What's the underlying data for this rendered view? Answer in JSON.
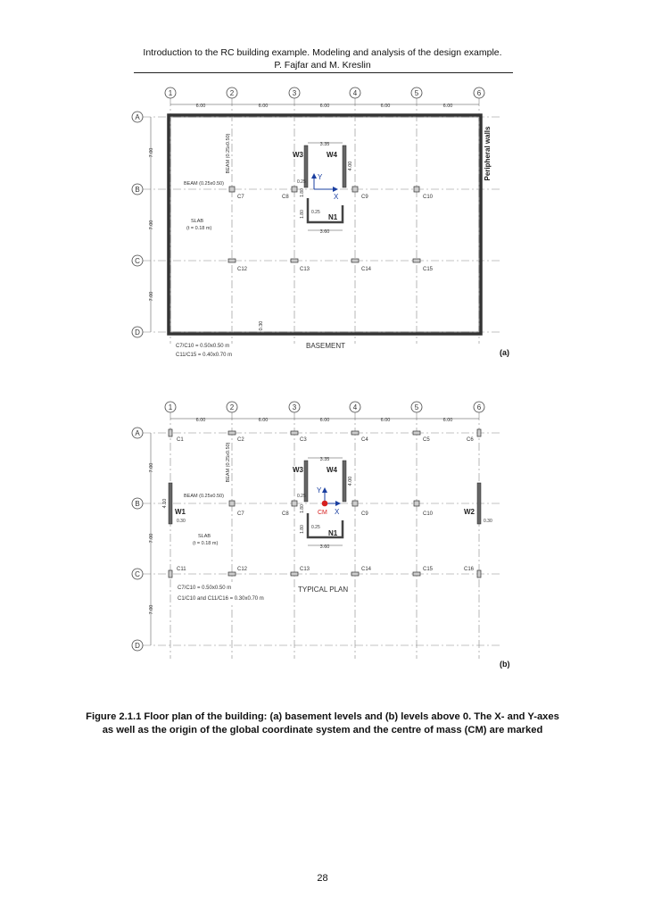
{
  "header": {
    "line1": "Introduction to the RC building example. Modeling and analysis of the design example.",
    "line2": "P. Fajfar and M. Kreslin"
  },
  "grid": {
    "axes_num": [
      "1",
      "2",
      "3",
      "4",
      "5",
      "6"
    ],
    "axes_let": [
      "A",
      "B",
      "C",
      "D"
    ],
    "span_x": "6.00",
    "span_y": "7.00"
  },
  "plan_a": {
    "label": "(a)",
    "title": "BASEMENT",
    "peripheral": "Peripheral walls",
    "beam_h": "BEAM (0.25x0.50)",
    "beam_v": "BEAM (0.25x0.50)",
    "slab": "SLAB",
    "slab_t": "(t = 0.18 m)",
    "wall_thk": "0.30",
    "note1": "C7/C10 = 0.50x0.50 m",
    "note2": "C11/C15 = 0.40x0.70 m",
    "columns": [
      "C7",
      "C8",
      "C9",
      "C10",
      "C12",
      "C13",
      "C14",
      "C15"
    ],
    "core": {
      "w3": "W3",
      "w4": "W4",
      "n1": "N1",
      "d335": "3.35",
      "d400": "4.00",
      "d025a": "0.25",
      "d025b": "0.25",
      "d180": "1.80",
      "d360": "3.60",
      "x": "X",
      "y": "Y"
    }
  },
  "plan_b": {
    "label": "(b)",
    "title": "TYPICAL PLAN",
    "beam_h": "BEAM (0.25x0.50)",
    "beam_v": "BEAM (0.25x0.50)",
    "slab": "SLAB",
    "slab_t": "(t = 0.18 m)",
    "note1": "C7/C10 = 0.50x0.50 m",
    "note2": "C1/C10 and C11/C16 = 0.30x0.70 m",
    "columns": [
      "C1",
      "C2",
      "C3",
      "C4",
      "C5",
      "C6",
      "C7",
      "C8",
      "C9",
      "C10",
      "C11",
      "C12",
      "C13",
      "C14",
      "C15",
      "C16"
    ],
    "w1": "W1",
    "w2": "W2",
    "w_len": "4.10",
    "w_thk1": "0.30",
    "w_thk2": "0.30",
    "cm": "CM",
    "core": {
      "w3": "W3",
      "w4": "W4",
      "n1": "N1",
      "d335": "3.35",
      "d400": "4.00",
      "d025a": "0.25",
      "d025b": "0.25",
      "d180": "1.80",
      "d360": "3.60",
      "x": "X",
      "y": "Y"
    }
  },
  "caption": "Figure 2.1.1 Floor plan of the building: (a) basement levels and (b) levels above 0. The X- and Y-axes as well as the origin of the global coordinate system and the centre of mass (CM) are marked",
  "page_number": "28"
}
